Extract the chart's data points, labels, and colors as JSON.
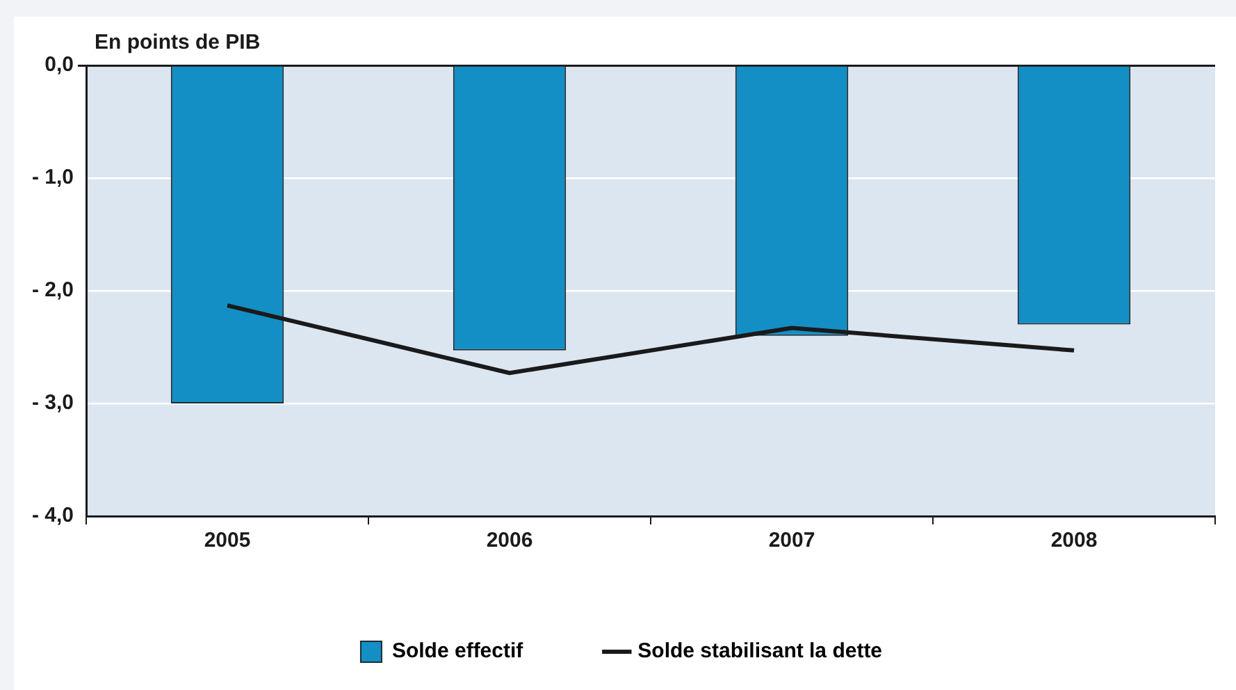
{
  "chart_data": {
    "type": "bar",
    "ylabel": "En points de PIB",
    "categories": [
      "2005",
      "2006",
      "2007",
      "2008"
    ],
    "series": [
      {
        "name": "Solde effectif",
        "color": "#138fc5",
        "values": [
          -3.0,
          -2.53,
          -2.4,
          -2.3
        ]
      },
      {
        "name": "Solde stabilisant la dette",
        "type": "line",
        "color": "#1a1a1a",
        "values": [
          -2.13,
          -2.73,
          -2.33,
          -2.53
        ]
      }
    ],
    "ylim": [
      -4,
      0
    ],
    "yticks": [
      {
        "value": -4,
        "label": "- 4,0"
      },
      {
        "value": -3,
        "label": "- 3,0"
      },
      {
        "value": -2,
        "label": "- 2,0"
      },
      {
        "value": -1,
        "label": "- 1,0"
      },
      {
        "value": 0,
        "label": "0,0"
      }
    ],
    "grid": "y",
    "legend": "bottom",
    "marker": "none",
    "line_style": "solid"
  }
}
